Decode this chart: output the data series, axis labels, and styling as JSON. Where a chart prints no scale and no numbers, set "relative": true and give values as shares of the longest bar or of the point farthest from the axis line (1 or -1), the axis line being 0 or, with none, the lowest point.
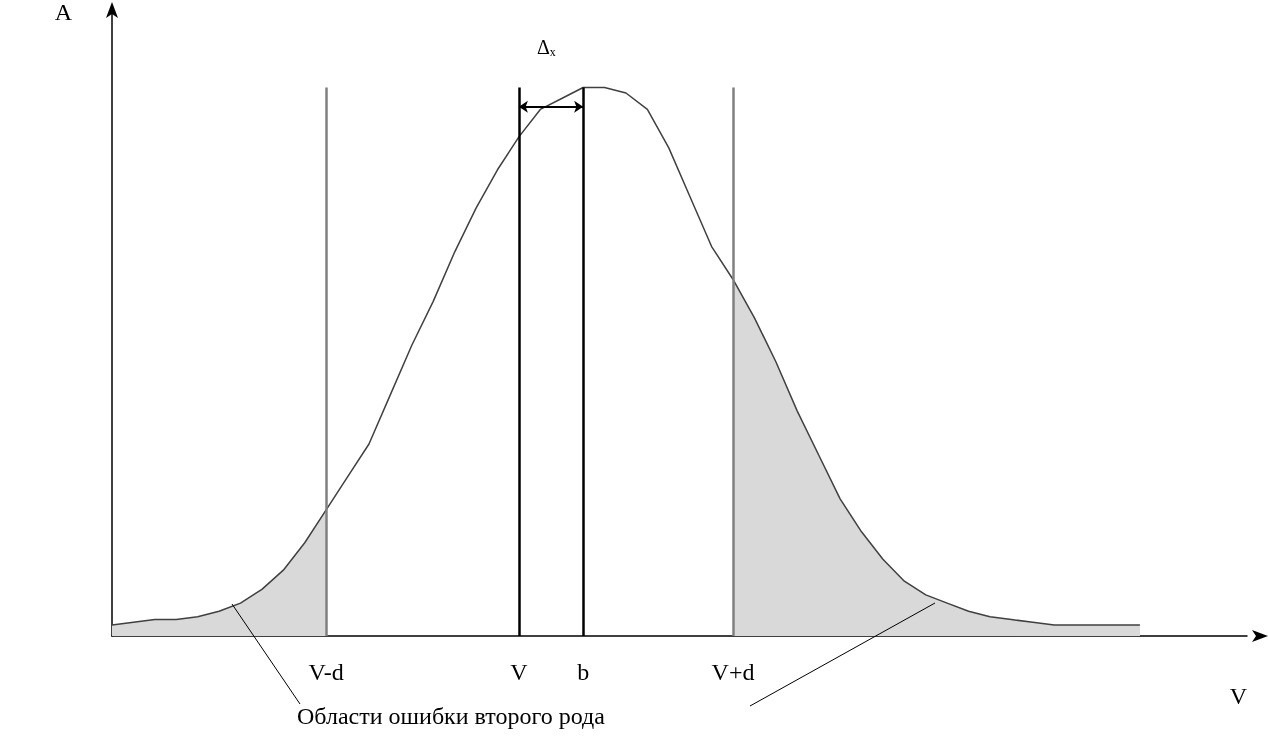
{
  "chart_data": {
    "type": "line",
    "relative": true,
    "marker": "none",
    "xlabel": "V",
    "ylabel": "A",
    "categories": [
      null,
      null,
      null,
      null,
      null,
      null,
      null,
      null,
      null,
      null,
      "V-d",
      null,
      null,
      null,
      null,
      null,
      null,
      null,
      null,
      "V",
      null,
      null,
      "b",
      null,
      null,
      null,
      null,
      null,
      null,
      "V+d",
      null,
      null,
      null,
      null,
      null,
      null,
      null,
      null,
      null,
      null,
      null,
      null,
      null,
      null,
      null,
      null,
      null,
      null,
      null,
      null,
      null,
      null,
      null,
      null
    ],
    "series": [
      {
        "color": "#404040",
        "values": [
          0.02,
          0.025,
          0.03,
          0.03,
          0.035,
          0.045,
          0.06,
          0.085,
          0.12,
          0.17,
          0.23,
          0.29,
          0.35,
          0.44,
          0.53,
          0.61,
          0.7,
          0.78,
          0.85,
          0.91,
          0.96,
          0.98,
          1,
          1,
          0.99,
          0.96,
          0.89,
          0.8,
          0.71,
          0.65,
          0.58,
          0.5,
          0.41,
          0.33,
          0.25,
          0.19,
          0.14,
          0.1,
          0.075,
          0.06,
          0.045,
          0.035,
          0.03,
          0.025,
          0.02,
          0.02,
          0.02,
          0.02,
          0.02,
          null,
          null,
          null,
          null,
          null
        ]
      },
      {
        "type": "area",
        "color": "#d9d9d9",
        "values": [
          0.02,
          0.025,
          0.03,
          0.03,
          0.035,
          0.045,
          0.06,
          0.085,
          0.12,
          0.17,
          0.23,
          null,
          null,
          null,
          null,
          null,
          null,
          null,
          null,
          null,
          null,
          null,
          null,
          null,
          null,
          null,
          null,
          null,
          null,
          null,
          null,
          null,
          null,
          null,
          null,
          null,
          null,
          null,
          null,
          null,
          null,
          null,
          null,
          null,
          null,
          null,
          null,
          null,
          null,
          null,
          null,
          null,
          null,
          null
        ]
      },
      {
        "type": "area",
        "color": "#d9d9d9",
        "values": [
          null,
          null,
          null,
          null,
          null,
          null,
          null,
          null,
          null,
          null,
          null,
          null,
          null,
          null,
          null,
          null,
          null,
          null,
          null,
          null,
          null,
          null,
          null,
          null,
          null,
          null,
          null,
          null,
          null,
          0.65,
          0.58,
          0.5,
          0.41,
          0.33,
          0.25,
          0.19,
          0.14,
          0.1,
          0.075,
          0.06,
          0.045,
          0.035,
          0.03,
          0.025,
          0.02,
          0.02,
          0.02,
          0.02,
          0.02,
          null,
          null,
          null,
          null,
          null
        ]
      }
    ],
    "ref_lines": [
      {
        "axis": "x",
        "value": "V-d",
        "color": "#808080"
      },
      {
        "axis": "x",
        "value": "V",
        "color": "#000000"
      },
      {
        "axis": "x",
        "value": "b",
        "color": "#000000"
      },
      {
        "axis": "x",
        "value": "V+d",
        "color": "#808080"
      }
    ],
    "annotations": [
      "Δₓ",
      "Области ошибки второго рода"
    ]
  }
}
